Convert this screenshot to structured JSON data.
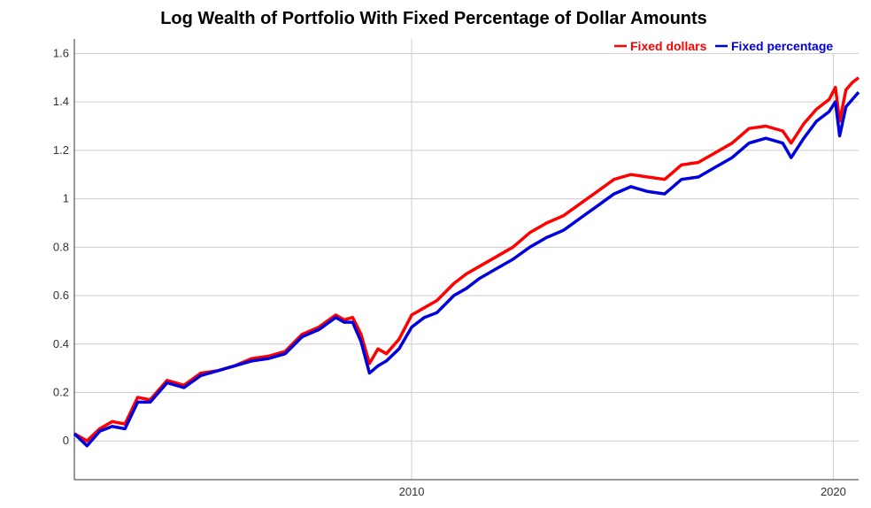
{
  "chart_data": {
    "type": "line",
    "title": "Log Wealth of Portfolio With Fixed Percentage of Dollar Amounts",
    "xlabel": "",
    "ylabel": "",
    "x_range": [
      2002.0,
      2020.6
    ],
    "ylim": [
      -0.16,
      1.66
    ],
    "y_ticks": [
      0,
      0.2,
      0.4,
      0.6,
      0.8,
      1,
      1.2,
      1.4,
      1.6
    ],
    "y_tick_labels": [
      "0",
      "0.2",
      "0.4",
      "0.6",
      "0.8",
      "1",
      "1.2",
      "1.4",
      "1.6"
    ],
    "x_ticks": [
      2010,
      2020
    ],
    "x_tick_labels": [
      "2010",
      "2020"
    ],
    "grid": true,
    "legend_position": "top-right",
    "colors": {
      "fixed_dollars": "#ff0000",
      "fixed_percentage": "#0000dd",
      "grid": "#cccccc"
    },
    "series": [
      {
        "name": "Fixed dollars",
        "color": "#ff0000",
        "x": [
          2002.0,
          2002.3,
          2002.6,
          2002.9,
          2003.2,
          2003.5,
          2003.8,
          2004.2,
          2004.6,
          2005.0,
          2005.4,
          2005.8,
          2006.2,
          2006.6,
          2007.0,
          2007.4,
          2007.8,
          2008.2,
          2008.4,
          2008.6,
          2008.8,
          2009.0,
          2009.2,
          2009.4,
          2009.7,
          2010.0,
          2010.3,
          2010.6,
          2011.0,
          2011.3,
          2011.6,
          2012.0,
          2012.4,
          2012.8,
          2013.2,
          2013.6,
          2014.0,
          2014.4,
          2014.8,
          2015.2,
          2015.6,
          2016.0,
          2016.4,
          2016.8,
          2017.2,
          2017.6,
          2018.0,
          2018.4,
          2018.8,
          2019.0,
          2019.3,
          2019.6,
          2019.9,
          2020.05,
          2020.15,
          2020.3,
          2020.45,
          2020.6
        ],
        "y": [
          0.03,
          0.0,
          0.05,
          0.08,
          0.07,
          0.18,
          0.17,
          0.25,
          0.23,
          0.28,
          0.29,
          0.31,
          0.34,
          0.35,
          0.37,
          0.44,
          0.47,
          0.52,
          0.5,
          0.51,
          0.44,
          0.32,
          0.38,
          0.36,
          0.42,
          0.52,
          0.55,
          0.58,
          0.65,
          0.69,
          0.72,
          0.76,
          0.8,
          0.86,
          0.9,
          0.93,
          0.98,
          1.03,
          1.08,
          1.1,
          1.09,
          1.08,
          1.14,
          1.15,
          1.19,
          1.23,
          1.29,
          1.3,
          1.28,
          1.23,
          1.31,
          1.37,
          1.41,
          1.46,
          1.32,
          1.45,
          1.48,
          1.5
        ]
      },
      {
        "name": "Fixed percentage",
        "color": "#0000dd",
        "x": [
          2002.0,
          2002.3,
          2002.6,
          2002.9,
          2003.2,
          2003.5,
          2003.8,
          2004.2,
          2004.6,
          2005.0,
          2005.4,
          2005.8,
          2006.2,
          2006.6,
          2007.0,
          2007.4,
          2007.8,
          2008.2,
          2008.4,
          2008.6,
          2008.8,
          2009.0,
          2009.2,
          2009.4,
          2009.7,
          2010.0,
          2010.3,
          2010.6,
          2011.0,
          2011.3,
          2011.6,
          2012.0,
          2012.4,
          2012.8,
          2013.2,
          2013.6,
          2014.0,
          2014.4,
          2014.8,
          2015.2,
          2015.6,
          2016.0,
          2016.4,
          2016.8,
          2017.2,
          2017.6,
          2018.0,
          2018.4,
          2018.8,
          2019.0,
          2019.3,
          2019.6,
          2019.9,
          2020.05,
          2020.15,
          2020.3,
          2020.45,
          2020.6
        ],
        "y": [
          0.03,
          -0.02,
          0.04,
          0.06,
          0.05,
          0.16,
          0.16,
          0.24,
          0.22,
          0.27,
          0.29,
          0.31,
          0.33,
          0.34,
          0.36,
          0.43,
          0.46,
          0.51,
          0.49,
          0.49,
          0.41,
          0.28,
          0.31,
          0.33,
          0.38,
          0.47,
          0.51,
          0.53,
          0.6,
          0.63,
          0.67,
          0.71,
          0.75,
          0.8,
          0.84,
          0.87,
          0.92,
          0.97,
          1.02,
          1.05,
          1.03,
          1.02,
          1.08,
          1.09,
          1.13,
          1.17,
          1.23,
          1.25,
          1.23,
          1.17,
          1.25,
          1.32,
          1.36,
          1.4,
          1.26,
          1.38,
          1.41,
          1.44
        ]
      }
    ]
  }
}
